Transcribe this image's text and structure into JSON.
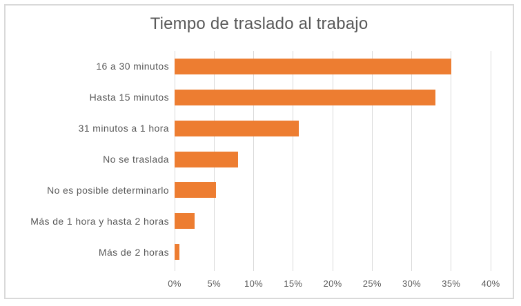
{
  "title": "Tiempo de traslado al trabajo",
  "colors": {
    "bar": "#ED7D31",
    "text": "#595959",
    "gridline": "#D9D9D9",
    "frame_border": "#D9D9D9",
    "background": "#FFFFFF"
  },
  "chart_data": {
    "type": "bar",
    "orientation": "horizontal",
    "title": "Tiempo de traslado al trabajo",
    "categories": [
      "16 a 30 minutos",
      "Hasta 15 minutos",
      "31 minutos a 1 hora",
      "No se traslada",
      "No es posible determinarlo",
      "Más de 1 hora y hasta 2 horas",
      "Más de 2 horas"
    ],
    "values": [
      35,
      33,
      15.7,
      8,
      5.2,
      2.5,
      0.6
    ],
    "value_unit": "%",
    "xlabel": "",
    "ylabel": "",
    "xlim": [
      0,
      40
    ],
    "x_ticks": [
      "0%",
      "5%",
      "10%",
      "15%",
      "20%",
      "25%",
      "30%",
      "35%",
      "40%"
    ],
    "grid": true,
    "legend": false,
    "data_labels": false
  }
}
